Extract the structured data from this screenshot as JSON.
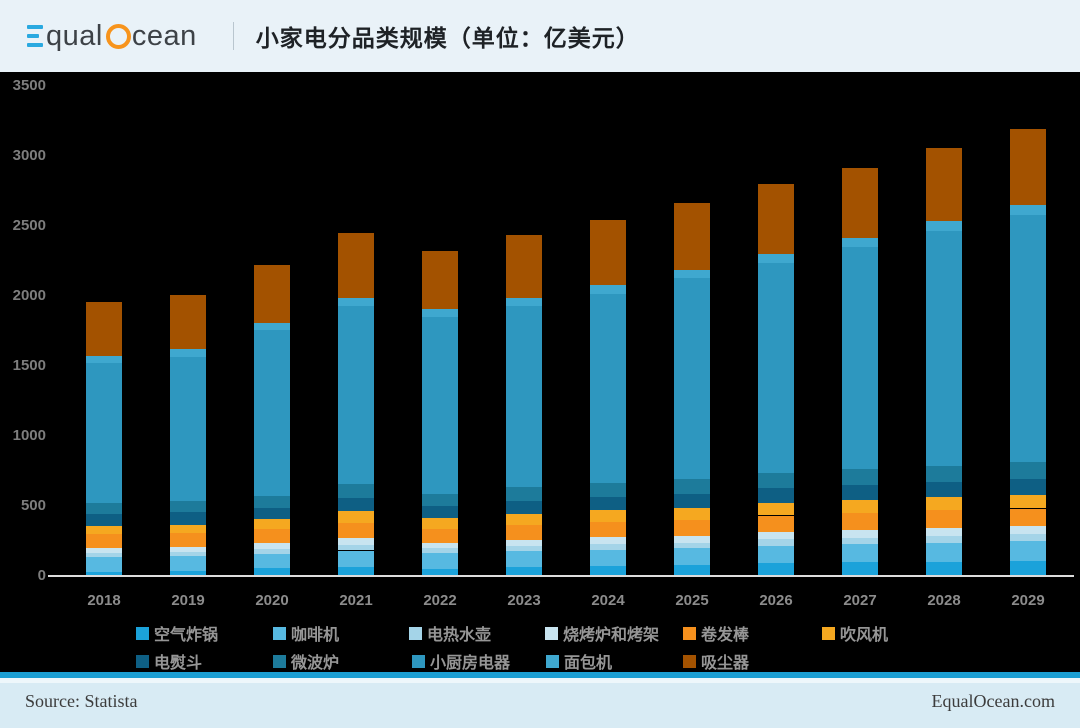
{
  "header": {
    "logo_part1": "qual",
    "logo_part2": "cean",
    "title": "小家电分品类规模（单位：亿美元）"
  },
  "chart_data": {
    "type": "bar",
    "stacked": true,
    "title": "小家电分品类规模（单位：亿美元）",
    "unit": "亿美元",
    "background": "#000000",
    "legend_position": "bottom",
    "grid": false,
    "ylim": [
      0,
      3500
    ],
    "yticks": [
      "3500",
      "3000",
      "2500",
      "2000",
      "1500",
      "1000",
      "500",
      "0"
    ],
    "categories": [
      "2018",
      "2019",
      "2020",
      "2021",
      "2022",
      "2023",
      "2024",
      "2025",
      "2026",
      "2027",
      "2028",
      "2029"
    ],
    "series": [
      {
        "id": "air-fryer",
        "name": "空气炸锅",
        "color": "#1ba2da",
        "values": [
          20,
          30,
          50,
          55,
          45,
          55,
          65,
          70,
          85,
          90,
          95,
          100
        ]
      },
      {
        "id": "coffee-machine",
        "name": "咖啡机",
        "color": "#57b9e1",
        "values": [
          110,
          105,
          100,
          120,
          110,
          115,
          115,
          120,
          125,
          130,
          135,
          140
        ]
      },
      {
        "id": "electric-kettle",
        "name": "电热水壶",
        "color": "#a4d4e8",
        "values": [
          30,
          30,
          35,
          42,
          35,
          38,
          40,
          42,
          44,
          46,
          48,
          50
        ]
      },
      {
        "id": "grill-and-bbq-rack",
        "name": "烧烤炉和烤架",
        "color": "#c8e4f0",
        "values": [
          35,
          36,
          42,
          48,
          42,
          45,
          48,
          50,
          53,
          55,
          58,
          60
        ]
      },
      {
        "id": "curling-iron",
        "name": "卷发棒",
        "color": "#f5901d",
        "values": [
          100,
          100,
          100,
          105,
          100,
          105,
          110,
          112,
          118,
          125,
          128,
          125
        ]
      },
      {
        "id": "hair-dryer",
        "name": "吹风机",
        "color": "#f5a820",
        "values": [
          57,
          57,
          70,
          88,
          72,
          80,
          85,
          87,
          92,
          93,
          94,
          97
        ]
      },
      {
        "id": "electric-iron",
        "name": "电熨斗",
        "color": "#0e5f84",
        "values": [
          85,
          90,
          85,
          95,
          88,
          93,
          95,
          96,
          105,
          102,
          108,
          114
        ]
      },
      {
        "id": "microwave-oven",
        "name": "微波炉",
        "color": "#1d7b9b",
        "values": [
          80,
          80,
          85,
          95,
          90,
          100,
          100,
          106,
          109,
          114,
          116,
          121
        ]
      },
      {
        "id": "small-kitchen-appliance",
        "name": "小厨房电器",
        "color": "#2e97bf",
        "values": [
          1000,
          1030,
          1180,
          1270,
          1260,
          1290,
          1350,
          1435,
          1500,
          1585,
          1675,
          1765
        ]
      },
      {
        "id": "bread-maker",
        "name": "面包机",
        "color": "#3fa8cf",
        "values": [
          50,
          55,
          55,
          60,
          55,
          60,
          60,
          60,
          64,
          65,
          70,
          70
        ]
      },
      {
        "id": "vacuum-cleaner",
        "name": "吸尘器",
        "color": "#a35200",
        "values": [
          380,
          385,
          415,
          465,
          420,
          445,
          465,
          480,
          495,
          505,
          520,
          545
        ]
      }
    ]
  },
  "footer": {
    "source": "Source: Statista",
    "brand": "EqualOcean.com"
  }
}
